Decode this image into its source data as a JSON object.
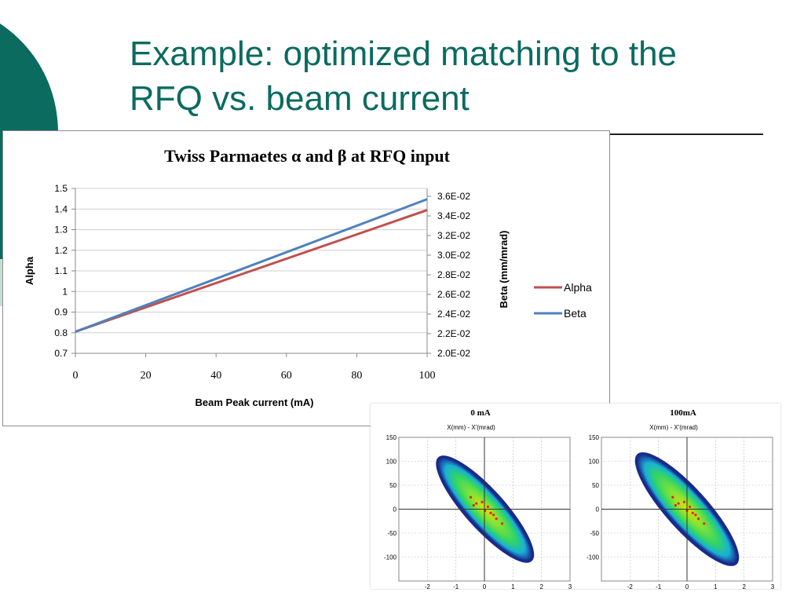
{
  "slide": {
    "title": "Example: optimized matching to the RFQ vs. beam current",
    "accent_color": "#0b6b5f"
  },
  "chart_data": [
    {
      "type": "line",
      "title": "Twiss Parmaetes  α and  β at RFQ input",
      "xlabel": "Beam Peak current (mA)",
      "ylabel": "Alpha",
      "y2label": "Beta (mm/mrad)",
      "x": [
        0,
        100
      ],
      "xticks": [
        "0",
        "20",
        "40",
        "60",
        "80",
        "100"
      ],
      "xlim": [
        0,
        100
      ],
      "ylim": [
        0.7,
        1.5
      ],
      "yticks": [
        "0.7",
        "0.8",
        "0.9",
        "1",
        "1.1",
        "1.2",
        "1.3",
        "1.4",
        "1.5"
      ],
      "y2lim": [
        0.02,
        0.0368
      ],
      "y2ticks": [
        "2.0E-02",
        "2.2E-02",
        "2.4E-02",
        "2.6E-02",
        "2.8E-02",
        "3.0E-02",
        "3.2E-02",
        "3.4E-02",
        "3.6E-02"
      ],
      "series": [
        {
          "name": "Alpha",
          "axis": "left",
          "values": [
            0.805,
            1.395
          ],
          "color": "#c0504d"
        },
        {
          "name": "Beta",
          "axis": "right",
          "values": [
            0.0222,
            0.0357
          ],
          "color": "#4f81bd"
        }
      ],
      "grid": "horizontal",
      "legend": "right"
    },
    {
      "type": "scatter",
      "title": "0 mA",
      "subtitle": "X(mm) - X'(mrad)",
      "xlim": [
        -3,
        3
      ],
      "ylim": [
        -150,
        150
      ],
      "xticks": [
        "-2",
        "-1",
        "0",
        "1",
        "2",
        "3"
      ],
      "yticks": [
        "150",
        "100",
        "50",
        "0",
        "-50",
        "-100"
      ],
      "ellipse": {
        "cx": 0.02,
        "cy": 0,
        "semi_major_mm": 2.45,
        "tilt": "negative"
      }
    },
    {
      "type": "scatter",
      "title": "100mA",
      "subtitle": "X(mm) - X'(mrad)",
      "xlim": [
        -3,
        3
      ],
      "ylim": [
        -150,
        150
      ],
      "xticks": [
        "-2",
        "-1",
        "0",
        "1",
        "2",
        "3"
      ],
      "yticks": [
        "150",
        "100",
        "50",
        "0",
        "-50",
        "-100"
      ],
      "ellipse": {
        "cx": 0.0,
        "cy": 0,
        "semi_major_mm": 2.6,
        "tilt": "negative"
      }
    }
  ]
}
